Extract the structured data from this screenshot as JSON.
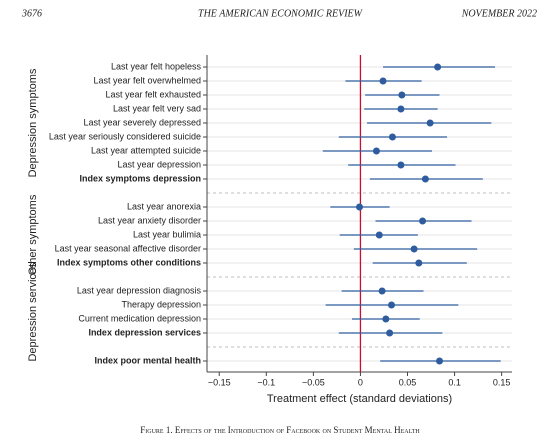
{
  "header": {
    "page": "3676",
    "journal": "THE AMERICAN ECONOMIC REVIEW",
    "date": "NOVEMBER 2022"
  },
  "chart_data": {
    "type": "forest",
    "xlabel": "Treatment effect (standard deviations)",
    "xlim": [
      -0.163,
      0.161
    ],
    "xticks": [
      {
        "value": -0.15,
        "label": "−0.15"
      },
      {
        "value": -0.1,
        "label": "−0.1"
      },
      {
        "value": -0.05,
        "label": "−0.05"
      },
      0,
      0.05,
      0.1,
      0.15
    ],
    "refline": 0,
    "refline_color": "#c8102e",
    "color": "#2e5c9e",
    "grid": true,
    "groups": [
      {
        "label": "Depression symptoms",
        "categories": [
          "Last year felt hopeless",
          "Last year felt overwhelmed",
          "Last year felt exhausted",
          "Last year felt very sad",
          "Last year severely depressed",
          "Last year seriously considered suicide",
          "Last year attempted suicide",
          "Last year depression",
          "Index symptoms depression"
        ],
        "values": [
          0.082,
          0.024,
          0.044,
          0.043,
          0.074,
          0.034,
          0.017,
          0.043,
          0.069
        ],
        "ci_low": [
          0.024,
          -0.016,
          0.005,
          0.004,
          0.007,
          -0.023,
          -0.04,
          -0.013,
          0.01
        ],
        "ci_high": [
          0.143,
          0.065,
          0.084,
          0.082,
          0.139,
          0.092,
          0.076,
          0.101,
          0.13
        ],
        "bold": [
          false,
          false,
          false,
          false,
          false,
          false,
          false,
          false,
          true
        ]
      },
      {
        "label": "Other symptoms",
        "categories": [
          "Last year anorexia",
          "Last year anxiety disorder",
          "Last year bulimia",
          "Last year seasonal affective disorder",
          "Index symptoms other conditions"
        ],
        "values": [
          -0.001,
          0.066,
          0.02,
          0.057,
          0.062
        ],
        "ci_low": [
          -0.032,
          0.016,
          -0.022,
          -0.007,
          0.013
        ],
        "ci_high": [
          0.031,
          0.118,
          0.061,
          0.124,
          0.113
        ],
        "bold": [
          false,
          false,
          false,
          false,
          true
        ]
      },
      {
        "label": "Depression services",
        "categories": [
          "Last year depression diagnosis",
          "Therapy depression",
          "Current medication depression",
          "Index depression services"
        ],
        "values": [
          0.023,
          0.033,
          0.027,
          0.031
        ],
        "ci_low": [
          -0.02,
          -0.037,
          -0.009,
          -0.023
        ],
        "ci_high": [
          0.067,
          0.104,
          0.063,
          0.087
        ],
        "bold": [
          false,
          false,
          false,
          true
        ]
      },
      {
        "categories": [
          "Index poor mental health"
        ],
        "values": [
          0.084
        ],
        "ci_low": [
          0.021
        ],
        "ci_high": [
          0.149
        ],
        "bold": [
          true
        ]
      }
    ]
  },
  "caption": "Figure 1. Effects of the Introduction of Facebook on Student Mental Health"
}
